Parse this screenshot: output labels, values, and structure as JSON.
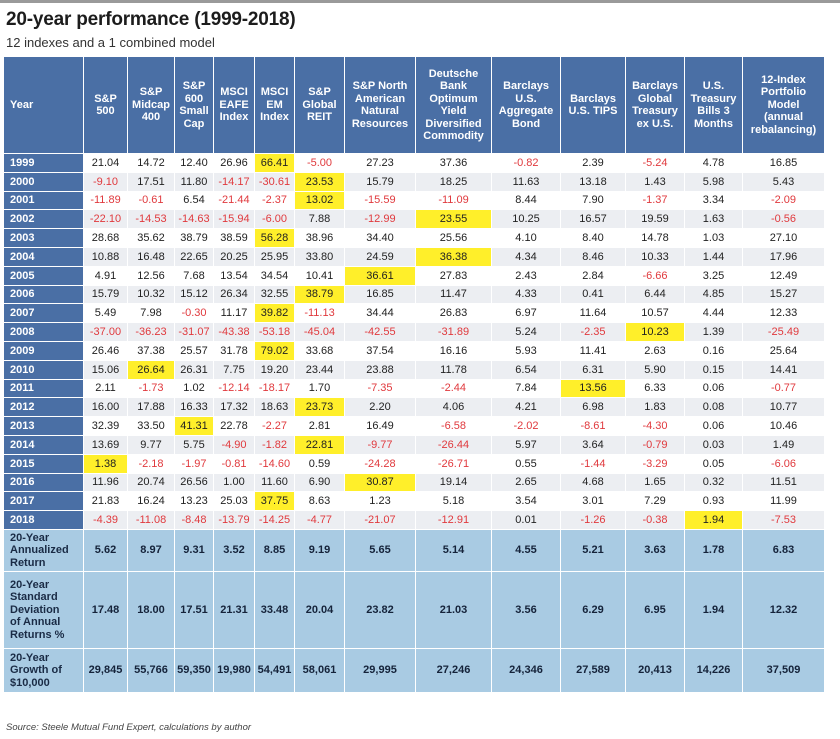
{
  "title": "20-year performance (1999-2018)",
  "subtitle": "12 indexes and a 1 combined model",
  "source": "Source: Steele Mutual Fund Expert, calculations by author",
  "colors": {
    "header_bg": "#4a6fa5",
    "summary_bg": "#a9cbe3",
    "highlight": "#ffef2a",
    "negative": "#e0393d",
    "row_alt": "#eceef2"
  },
  "chart_data": {
    "type": "table",
    "year_label": "Year",
    "columns": [
      "S&P 500",
      "S&P Midcap 400",
      "S&P 600 Small Cap",
      "MSCI EAFE Index",
      "MSCI EM Index",
      "S&P Global REIT",
      "S&P North American Natural Resources",
      "Deutsche Bank Optimum Yield Diversified Commodity",
      "Barclays U.S. Aggregate Bond",
      "Barclays U.S. TIPS",
      "Barclays Global Treasury ex U.S.",
      "U.S. Treasury Bills 3 Months",
      "12-Index Portfolio Model (annual rebalancing)"
    ],
    "rows": [
      {
        "year": "1999",
        "values": [
          "21.04",
          "14.72",
          "12.40",
          "26.96",
          "66.41",
          "-5.00",
          "27.23",
          "37.36",
          "-0.82",
          "2.39",
          "-5.24",
          "4.78",
          "16.85"
        ],
        "highlight": 4
      },
      {
        "year": "2000",
        "values": [
          "-9.10",
          "17.51",
          "11.80",
          "-14.17",
          "-30.61",
          "23.53",
          "15.79",
          "18.25",
          "11.63",
          "13.18",
          "1.43",
          "5.98",
          "5.43"
        ],
        "highlight": 5
      },
      {
        "year": "2001",
        "values": [
          "-11.89",
          "-0.61",
          "6.54",
          "-21.44",
          "-2.37",
          "13.02",
          "-15.59",
          "-11.09",
          "8.44",
          "7.90",
          "-1.37",
          "3.34",
          "-2.09"
        ],
        "highlight": 5
      },
      {
        "year": "2002",
        "values": [
          "-22.10",
          "-14.53",
          "-14.63",
          "-15.94",
          "-6.00",
          "7.88",
          "-12.99",
          "23.55",
          "10.25",
          "16.57",
          "19.59",
          "1.63",
          "-0.56"
        ],
        "highlight": 7
      },
      {
        "year": "2003",
        "values": [
          "28.68",
          "35.62",
          "38.79",
          "38.59",
          "56.28",
          "38.96",
          "34.40",
          "25.56",
          "4.10",
          "8.40",
          "14.78",
          "1.03",
          "27.10"
        ],
        "highlight": 4
      },
      {
        "year": "2004",
        "values": [
          "10.88",
          "16.48",
          "22.65",
          "20.25",
          "25.95",
          "33.80",
          "24.59",
          "36.38",
          "4.34",
          "8.46",
          "10.33",
          "1.44",
          "17.96"
        ],
        "highlight": 7
      },
      {
        "year": "2005",
        "values": [
          "4.91",
          "12.56",
          "7.68",
          "13.54",
          "34.54",
          "10.41",
          "36.61",
          "27.83",
          "2.43",
          "2.84",
          "-6.66",
          "3.25",
          "12.49"
        ],
        "highlight": 6
      },
      {
        "year": "2006",
        "values": [
          "15.79",
          "10.32",
          "15.12",
          "26.34",
          "32.55",
          "38.79",
          "16.85",
          "11.47",
          "4.33",
          "0.41",
          "6.44",
          "4.85",
          "15.27"
        ],
        "highlight": 5
      },
      {
        "year": "2007",
        "values": [
          "5.49",
          "7.98",
          "-0.30",
          "11.17",
          "39.82",
          "-11.13",
          "34.44",
          "26.83",
          "6.97",
          "11.64",
          "10.57",
          "4.44",
          "12.33"
        ],
        "highlight": 4
      },
      {
        "year": "2008",
        "values": [
          "-37.00",
          "-36.23",
          "-31.07",
          "-43.38",
          "-53.18",
          "-45.04",
          "-42.55",
          "-31.89",
          "5.24",
          "-2.35",
          "10.23",
          "1.39",
          "-25.49"
        ],
        "highlight": 10
      },
      {
        "year": "2009",
        "values": [
          "26.46",
          "37.38",
          "25.57",
          "31.78",
          "79.02",
          "33.68",
          "37.54",
          "16.16",
          "5.93",
          "11.41",
          "2.63",
          "0.16",
          "25.64"
        ],
        "highlight": 4
      },
      {
        "year": "2010",
        "values": [
          "15.06",
          "26.64",
          "26.31",
          "7.75",
          "19.20",
          "23.44",
          "23.88",
          "11.78",
          "6.54",
          "6.31",
          "5.90",
          "0.15",
          "14.41"
        ],
        "highlight": 1
      },
      {
        "year": "2011",
        "values": [
          "2.11",
          "-1.73",
          "1.02",
          "-12.14",
          "-18.17",
          "1.70",
          "-7.35",
          "-2.44",
          "7.84",
          "13.56",
          "6.33",
          "0.06",
          "-0.77"
        ],
        "highlight": 9
      },
      {
        "year": "2012",
        "values": [
          "16.00",
          "17.88",
          "16.33",
          "17.32",
          "18.63",
          "23.73",
          "2.20",
          "4.06",
          "4.21",
          "6.98",
          "1.83",
          "0.08",
          "10.77"
        ],
        "highlight": 5
      },
      {
        "year": "2013",
        "values": [
          "32.39",
          "33.50",
          "41.31",
          "22.78",
          "-2.27",
          "2.81",
          "16.49",
          "-6.58",
          "-2.02",
          "-8.61",
          "-4.30",
          "0.06",
          "10.46"
        ],
        "highlight": 2
      },
      {
        "year": "2014",
        "values": [
          "13.69",
          "9.77",
          "5.75",
          "-4.90",
          "-1.82",
          "22.81",
          "-9.77",
          "-26.44",
          "5.97",
          "3.64",
          "-0.79",
          "0.03",
          "1.49"
        ],
        "highlight": 5
      },
      {
        "year": "2015",
        "values": [
          "1.38",
          "-2.18",
          "-1.97",
          "-0.81",
          "-14.60",
          "0.59",
          "-24.28",
          "-26.71",
          "0.55",
          "-1.44",
          "-3.29",
          "0.05",
          "-6.06"
        ],
        "highlight": 0
      },
      {
        "year": "2016",
        "values": [
          "11.96",
          "20.74",
          "26.56",
          "1.00",
          "11.60",
          "6.90",
          "30.87",
          "19.14",
          "2.65",
          "4.68",
          "1.65",
          "0.32",
          "11.51"
        ],
        "highlight": 6
      },
      {
        "year": "2017",
        "values": [
          "21.83",
          "16.24",
          "13.23",
          "25.03",
          "37.75",
          "8.63",
          "1.23",
          "5.18",
          "3.54",
          "3.01",
          "7.29",
          "0.93",
          "11.99"
        ],
        "highlight": 4
      },
      {
        "year": "2018",
        "values": [
          "-4.39",
          "-11.08",
          "-8.48",
          "-13.79",
          "-14.25",
          "-4.77",
          "-21.07",
          "-12.91",
          "0.01",
          "-1.26",
          "-0.38",
          "1.94",
          "-7.53"
        ],
        "highlight": 11
      }
    ],
    "summary": [
      {
        "label": "20-Year Annualized Return",
        "values": [
          "5.62",
          "8.97",
          "9.31",
          "3.52",
          "8.85",
          "9.19",
          "5.65",
          "5.14",
          "4.55",
          "5.21",
          "3.63",
          "1.78",
          "6.83"
        ]
      },
      {
        "label": "20-Year Standard Deviation of Annual Returns %",
        "values": [
          "17.48",
          "18.00",
          "17.51",
          "21.31",
          "33.48",
          "20.04",
          "23.82",
          "21.03",
          "3.56",
          "6.29",
          "6.95",
          "1.94",
          "12.32"
        ]
      },
      {
        "label": "20-Year Growth of $10,000",
        "values": [
          "29,845",
          "55,766",
          "59,350",
          "19,980",
          "54,491",
          "58,061",
          "29,995",
          "27,246",
          "24,346",
          "27,589",
          "20,413",
          "14,226",
          "37,509"
        ]
      }
    ]
  }
}
